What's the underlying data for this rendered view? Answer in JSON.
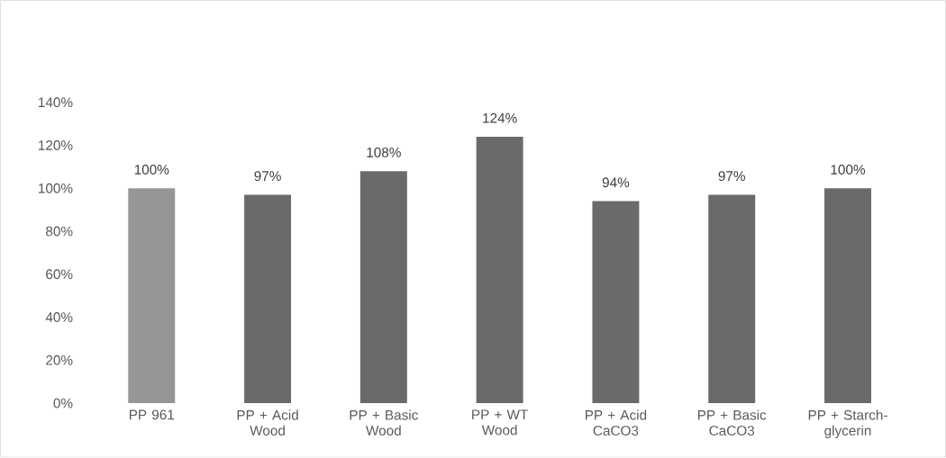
{
  "chart_data": {
    "type": "bar",
    "categories": [
      "PP 961",
      "PP + Acid Wood",
      "PP + Basic Wood",
      "PP + WT Wood",
      "PP + Acid CaCO3",
      "PP + Basic CaCO3",
      "PP + Starch-glycerin"
    ],
    "values": [
      100,
      97,
      108,
      124,
      94,
      97,
      100
    ],
    "colors": [
      "#969696",
      "#6a6a6a",
      "#6a6a6a",
      "#6a6a6a",
      "#6a6a6a",
      "#6a6a6a",
      "#6a6a6a"
    ],
    "value_labels": [
      "100%",
      "97%",
      "108%",
      "124%",
      "94%",
      "97%",
      "100%"
    ],
    "ylim": [
      0,
      140
    ],
    "yticks": [
      {
        "value": 0,
        "label": "0%"
      },
      {
        "value": 20,
        "label": "20%"
      },
      {
        "value": 40,
        "label": "40%"
      },
      {
        "value": 60,
        "label": "60%"
      },
      {
        "value": 80,
        "label": "80%"
      },
      {
        "value": 100,
        "label": "100%"
      },
      {
        "value": 120,
        "label": "120%"
      },
      {
        "value": 140,
        "label": "140%"
      }
    ]
  }
}
